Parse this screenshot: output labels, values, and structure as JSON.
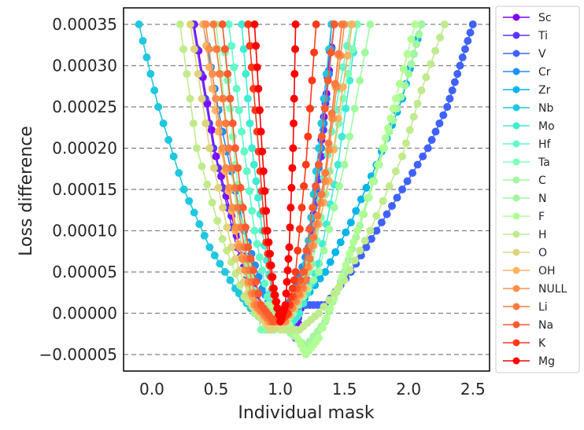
{
  "chart_data": {
    "type": "line",
    "xlabel": "Individual mask",
    "ylabel": "Loss difference",
    "xlim": [
      -0.22,
      2.63
    ],
    "ylim": [
      -7e-05,
      0.00037
    ],
    "xticks": [
      0.0,
      0.5,
      1.0,
      1.5,
      2.0,
      2.5
    ],
    "xtick_labels": [
      "0.0",
      "0.5",
      "1.0",
      "1.5",
      "2.0",
      "2.5"
    ],
    "yticks": [
      -5e-05,
      0.0,
      5e-05,
      0.0001,
      0.00015,
      0.0002,
      0.00025,
      0.0003,
      0.00035
    ],
    "ytick_labels": [
      "−0.00005",
      "0.00000",
      "0.00005",
      "0.00010",
      "0.00015",
      "0.00020",
      "0.00025",
      "0.00030",
      "0.00035"
    ],
    "grid": "horizontal dashed",
    "legend_position": "outside right",
    "series": [
      {
        "name": "Sc",
        "color": "#8000ff",
        "x": [
          0.33,
          0.5,
          0.7,
          0.85,
          0.95,
          1.05,
          1.12,
          1.22,
          1.32,
          1.42
        ],
        "y": [
          0.00035,
          0.00019,
          7e-05,
          1e-05,
          -2e-05,
          -1e-05,
          -3e-05,
          6e-05,
          0.00021,
          0.00035
        ]
      },
      {
        "name": "Ti",
        "color": "#6034fe",
        "x": [
          0.32,
          0.48,
          0.66,
          0.8,
          0.92,
          1.02,
          1.12,
          1.22,
          1.32,
          1.4
        ],
        "y": [
          0.00035,
          0.0002,
          8e-05,
          2e-05,
          -1e-05,
          -1e-05,
          -2e-05,
          5e-05,
          0.00019,
          0.00035
        ]
      },
      {
        "name": "V",
        "color": "#4062fa",
        "x": [
          1.2,
          1.35,
          1.55,
          1.75,
          1.95,
          2.15,
          2.3,
          2.4,
          2.5
        ],
        "y": [
          1e-05,
          1e-05,
          5e-05,
          0.0001,
          0.00015,
          0.0002,
          0.00025,
          0.0003,
          0.00035
        ]
      },
      {
        "name": "Cr",
        "color": "#208ef4",
        "x": [
          0.4,
          0.55,
          0.72,
          0.86,
          0.98,
          1.1,
          1.22,
          1.32,
          1.42
        ],
        "y": [
          0.00035,
          0.00022,
          0.0001,
          3e-05,
          -1e-05,
          2e-05,
          8e-05,
          0.0002,
          0.00035
        ]
      },
      {
        "name": "Zr",
        "color": "#00b5eb",
        "x": [
          1.0,
          1.15,
          1.35,
          1.55,
          1.75,
          1.95,
          2.1
        ],
        "y": [
          0.0,
          1e-05,
          5e-05,
          0.00011,
          0.00018,
          0.00026,
          0.00035
        ]
      },
      {
        "name": "Nb",
        "color": "#1fc8de",
        "x": [
          -0.1,
          0.05,
          0.25,
          0.45,
          0.65,
          0.8,
          0.95,
          1.1,
          1.2,
          1.3,
          1.4
        ],
        "y": [
          0.00035,
          0.00025,
          0.00015,
          8e-05,
          3e-05,
          0.0,
          -1e-05,
          1e-05,
          6e-05,
          0.0002,
          0.00035
        ]
      },
      {
        "name": "Mo",
        "color": "#40ecd4",
        "x": [
          0.7,
          0.78,
          0.86,
          0.95,
          1.05,
          1.15,
          1.3,
          1.45,
          1.6
        ],
        "y": [
          0.00035,
          0.0002,
          0.0001,
          1e-05,
          -2e-05,
          0.0,
          6e-05,
          0.00018,
          0.00035
        ]
      },
      {
        "name": "Hf",
        "color": "#60fac8",
        "x": [
          0.6,
          0.7,
          0.8,
          0.9,
          1.0,
          1.1,
          1.25,
          1.4,
          1.55
        ],
        "y": [
          0.00035,
          0.00022,
          0.0001,
          2e-05,
          -2e-05,
          0.0,
          8e-05,
          0.00022,
          0.00035
        ]
      },
      {
        "name": "Ta",
        "color": "#80ffb4",
        "x": [
          0.55,
          0.65,
          0.75,
          0.85,
          0.95,
          1.1,
          1.25,
          1.42,
          1.6
        ],
        "y": [
          0.00035,
          0.00018,
          6e-05,
          -2e-05,
          -2e-05,
          1e-05,
          6e-05,
          0.0002,
          0.00035
        ]
      },
      {
        "name": "C",
        "color": "#9ffa9f",
        "x": [
          0.5,
          0.6,
          0.7,
          0.8,
          0.95,
          1.1,
          1.3,
          1.5,
          1.7
        ],
        "y": [
          0.00035,
          0.0002,
          8e-05,
          0.0,
          -2e-05,
          0.0,
          5e-05,
          0.00018,
          0.00035
        ]
      },
      {
        "name": "N",
        "color": "#a3f5a0",
        "x": [
          0.9,
          1.05,
          1.2,
          1.35,
          1.5,
          1.65,
          1.85,
          2.0,
          2.1
        ],
        "y": [
          1e-05,
          -2e-05,
          -4e-05,
          -1e-05,
          5e-05,
          0.00012,
          0.00022,
          0.00029,
          0.00035
        ]
      },
      {
        "name": "F",
        "color": "#b1ff94",
        "x": [
          0.95,
          1.1,
          1.2,
          1.3,
          1.45,
          1.6,
          1.8,
          1.9,
          2.05
        ],
        "y": [
          1e-05,
          -2e-05,
          -5e-05,
          -3e-05,
          3e-05,
          0.0001,
          0.0002,
          0.00026,
          0.00035
        ]
      },
      {
        "name": "H",
        "color": "#c0eb8d",
        "x": [
          0.22,
          0.35,
          0.55,
          0.72,
          0.88,
          1.0,
          1.15,
          1.3,
          1.5,
          1.7,
          1.95,
          2.1,
          2.28
        ],
        "y": [
          0.00035,
          0.0002,
          9e-05,
          2e-05,
          -1e-05,
          -2e-05,
          -2e-05,
          0.0,
          4e-05,
          0.0001,
          0.00019,
          0.00027,
          0.00035
        ]
      },
      {
        "name": "O",
        "color": "#dfd47a",
        "x": [
          0.3,
          0.45,
          0.62,
          0.78,
          0.92,
          1.05,
          1.2,
          1.35,
          1.48
        ],
        "y": [
          0.00035,
          0.0002,
          8e-05,
          1e-05,
          -2e-05,
          -1e-05,
          3e-05,
          0.00016,
          0.00035
        ]
      },
      {
        "name": "OH",
        "color": "#ffb360",
        "x": [
          0.4,
          0.52,
          0.65,
          0.78,
          0.9,
          1.02,
          1.18,
          1.38,
          1.56
        ],
        "y": [
          0.00035,
          0.00022,
          0.0001,
          2e-05,
          -1e-05,
          -1e-05,
          3e-05,
          0.00016,
          0.00035
        ]
      },
      {
        "name": "NULL",
        "color": "#ff8f4b",
        "x": [
          0.42,
          0.55,
          0.68,
          0.8,
          0.92,
          1.04,
          1.18,
          1.35,
          1.5
        ],
        "y": [
          0.00035,
          0.0002,
          8e-05,
          1e-05,
          -1e-05,
          -1e-05,
          3e-05,
          0.00016,
          0.00035
        ]
      },
      {
        "name": "Li",
        "color": "#ff7a40",
        "x": [
          0.48,
          0.6,
          0.72,
          0.82,
          0.93,
          1.05,
          1.2,
          1.35,
          1.48
        ],
        "y": [
          0.00035,
          0.0002,
          8e-05,
          1e-05,
          -1e-05,
          0.0,
          4e-05,
          0.00017,
          0.00035
        ]
      },
      {
        "name": "Na",
        "color": "#ff5a2e",
        "x": [
          0.55,
          0.65,
          0.75,
          0.85,
          0.95,
          1.05,
          1.18,
          1.3,
          1.42
        ],
        "y": [
          0.00035,
          0.0002,
          8e-05,
          1e-05,
          -1e-05,
          0.0,
          5e-05,
          0.00018,
          0.00035
        ]
      },
      {
        "name": "K",
        "color": "#ff3a1a",
        "x": [
          0.75,
          0.82,
          0.88,
          0.94,
          1.0,
          1.06,
          1.12,
          1.2,
          1.28
        ],
        "y": [
          0.00035,
          0.00022,
          0.0001,
          3e-05,
          -1e-05,
          0.0,
          5e-05,
          0.00018,
          0.00035
        ]
      },
      {
        "name": "Mg",
        "color": "#ff0000",
        "x": [
          0.8,
          0.85,
          0.9,
          0.95,
          1.0,
          1.04,
          1.07,
          1.1,
          1.12
        ],
        "y": [
          0.00035,
          0.00022,
          0.0001,
          3e-05,
          -1e-05,
          1e-05,
          8e-05,
          0.0002,
          0.00035
        ]
      }
    ]
  }
}
